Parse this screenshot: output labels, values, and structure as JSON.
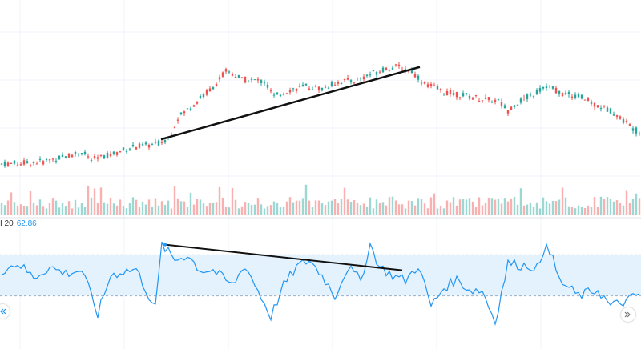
{
  "indicator": {
    "name_fragment": "I 20",
    "value": "62.86"
  },
  "colors": {
    "up": "#26a69a",
    "down": "#ef5350",
    "rsi_line": "#2196f3",
    "rsi_band_fill": "#e3f2fd",
    "trendline": "#111111",
    "grid": "#f0f3fa"
  },
  "icons": {
    "left_button": "double-chevron-left-icon",
    "right_button": "double-chevron-right-icon"
  },
  "chart_data": [
    {
      "type": "candlestick",
      "title": "",
      "xlabel": "",
      "ylabel": "",
      "grid": true,
      "price_anchors": [
        [
          0,
          10
        ],
        [
          12,
          12
        ],
        [
          18,
          16
        ],
        [
          25,
          22
        ],
        [
          28,
          14
        ],
        [
          35,
          20
        ],
        [
          40,
          26
        ],
        [
          48,
          29
        ],
        [
          52,
          35
        ],
        [
          55,
          55
        ],
        [
          60,
          68
        ],
        [
          66,
          85
        ],
        [
          70,
          100
        ],
        [
          72,
          98
        ],
        [
          75,
          92
        ],
        [
          82,
          90
        ],
        [
          85,
          75
        ],
        [
          90,
          82
        ],
        [
          95,
          85
        ],
        [
          100,
          83
        ],
        [
          105,
          90
        ],
        [
          110,
          91
        ],
        [
          116,
          98
        ],
        [
          120,
          103
        ],
        [
          124,
          104
        ],
        [
          128,
          100
        ],
        [
          132,
          88
        ],
        [
          138,
          80
        ],
        [
          145,
          76
        ],
        [
          150,
          73
        ],
        [
          155,
          71
        ],
        [
          158,
          62
        ],
        [
          160,
          68
        ],
        [
          165,
          76
        ],
        [
          170,
          86
        ],
        [
          175,
          78
        ],
        [
          180,
          76
        ],
        [
          185,
          68
        ],
        [
          190,
          62
        ],
        [
          195,
          50
        ],
        [
          199,
          40
        ]
      ],
      "volume_range": [
        0.2,
        1.0
      ],
      "trendline": {
        "from": [
          50,
          34
        ],
        "to": [
          130,
          104
        ]
      }
    },
    {
      "type": "line",
      "series": [
        {
          "name": "",
          "label_value": "62.86"
        }
      ],
      "ylim": [
        0,
        100
      ],
      "band": [
        30,
        70
      ],
      "rsi_anchors": [
        [
          0,
          55
        ],
        [
          5,
          62
        ],
        [
          10,
          48
        ],
        [
          15,
          58
        ],
        [
          20,
          52
        ],
        [
          25,
          55
        ],
        [
          28,
          30
        ],
        [
          30,
          12
        ],
        [
          34,
          50
        ],
        [
          38,
          54
        ],
        [
          42,
          56
        ],
        [
          46,
          30
        ],
        [
          48,
          18
        ],
        [
          50,
          80
        ],
        [
          54,
          65
        ],
        [
          58,
          70
        ],
        [
          62,
          55
        ],
        [
          66,
          55
        ],
        [
          72,
          40
        ],
        [
          76,
          60
        ],
        [
          80,
          35
        ],
        [
          84,
          10
        ],
        [
          88,
          40
        ],
        [
          92,
          58
        ],
        [
          96,
          65
        ],
        [
          100,
          50
        ],
        [
          104,
          30
        ],
        [
          108,
          58
        ],
        [
          112,
          45
        ],
        [
          115,
          80
        ],
        [
          118,
          58
        ],
        [
          122,
          50
        ],
        [
          126,
          45
        ],
        [
          130,
          60
        ],
        [
          134,
          20
        ],
        [
          138,
          38
        ],
        [
          142,
          46
        ],
        [
          146,
          36
        ],
        [
          150,
          35
        ],
        [
          154,
          5
        ],
        [
          158,
          62
        ],
        [
          162,
          60
        ],
        [
          168,
          58
        ],
        [
          170,
          85
        ],
        [
          174,
          45
        ],
        [
          180,
          30
        ],
        [
          186,
          36
        ],
        [
          190,
          20
        ],
        [
          195,
          25
        ],
        [
          199,
          32
        ]
      ],
      "trendline": {
        "from": [
          51,
          80
        ],
        "to": [
          125,
          55
        ]
      }
    }
  ]
}
